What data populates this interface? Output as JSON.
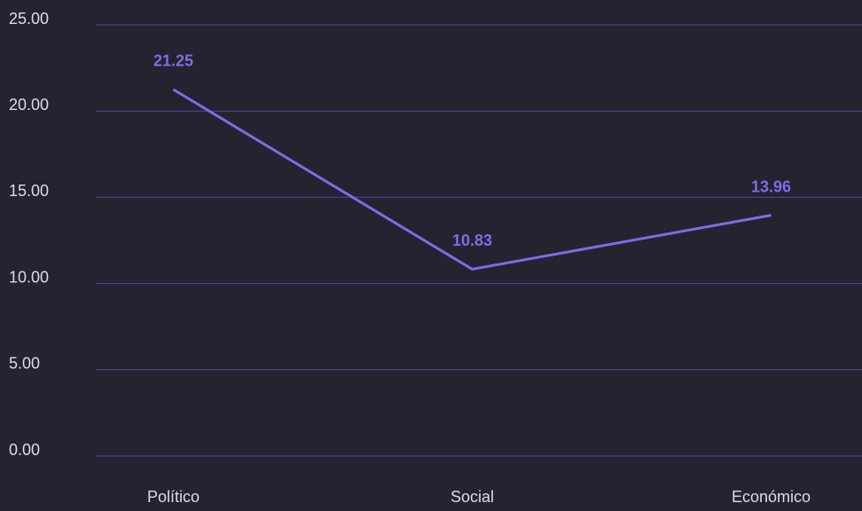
{
  "chart_data": {
    "type": "line",
    "categories": [
      "Político",
      "Social",
      "Económico"
    ],
    "series": [
      {
        "name": null,
        "color": "#7a6ee6",
        "values": [
          21.25,
          10.83,
          13.96
        ]
      }
    ],
    "ylim": [
      0,
      25
    ],
    "yticks": [
      {
        "value": 0,
        "label": "0.00"
      },
      {
        "value": 5,
        "label": "5.00"
      },
      {
        "value": 10,
        "label": "10.00"
      },
      {
        "value": 15,
        "label": "15.00"
      },
      {
        "value": 20,
        "label": "20.00"
      },
      {
        "value": 25,
        "label": "25.00"
      }
    ],
    "grid": true
  }
}
